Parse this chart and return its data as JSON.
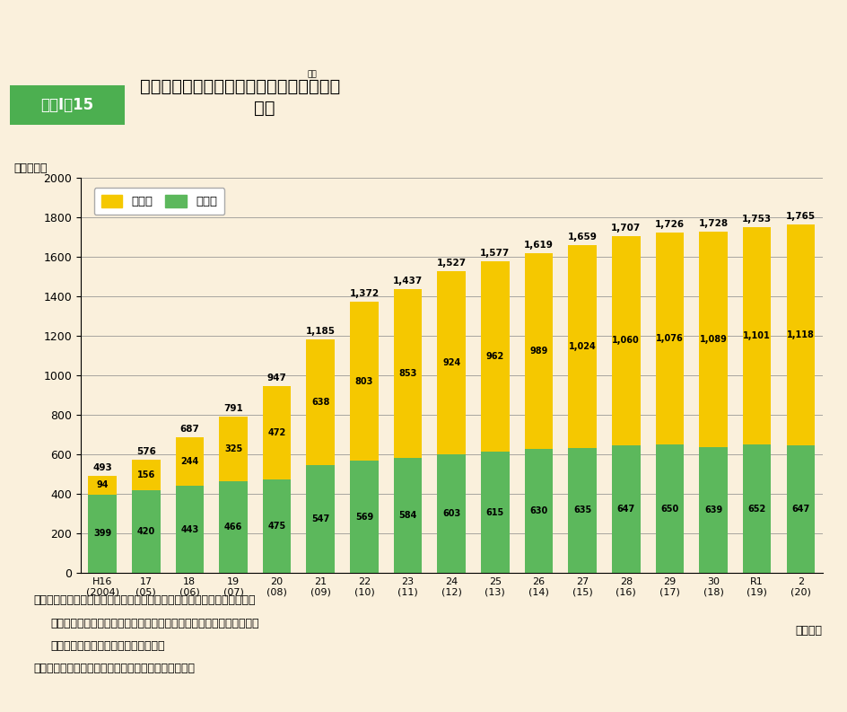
{
  "years": [
    "H16\n(2004)",
    "17\n(05)",
    "18\n(06)",
    "19\n(07)",
    "20\n(08)",
    "21\n(09)",
    "22\n(10)",
    "23\n(11)",
    "24\n(12)",
    "25\n(13)",
    "26\n(14)",
    "27\n(15)",
    "28\n(16)",
    "29\n(17)",
    "30\n(18)",
    "R1\n(19)",
    "2\n(20)"
  ],
  "minyu": [
    399,
    420,
    443,
    466,
    475,
    547,
    569,
    584,
    603,
    615,
    630,
    635,
    647,
    650,
    639,
    652,
    647
  ],
  "kokuyu": [
    94,
    156,
    244,
    325,
    472,
    638,
    803,
    853,
    924,
    962,
    989,
    1024,
    1060,
    1076,
    1089,
    1101,
    1118
  ],
  "total_labels": [
    493,
    576,
    687,
    791,
    947,
    1185,
    1372,
    1437,
    1527,
    1577,
    1619,
    1659,
    1707,
    1726,
    1728,
    1753,
    1765
  ],
  "minyu_color": "#F5C800",
  "kokuyu_color": "#5CB85C",
  "background_color": "#FAF0DC",
  "title_box_color": "#4CAF50",
  "ylim": [
    0,
    2000
  ],
  "yticks": [
    0,
    200,
    400,
    600,
    800,
    1000,
    1200,
    1400,
    1600,
    1800,
    2000
  ]
}
